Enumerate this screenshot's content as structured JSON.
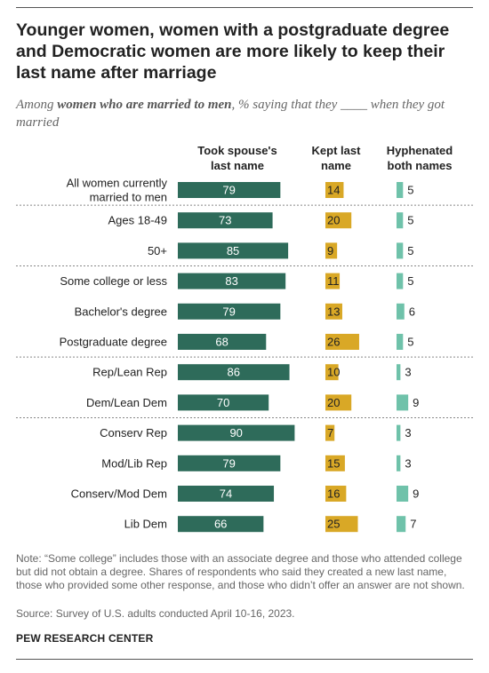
{
  "title": "Younger women, women with a postgraduate degree and Democratic women are more likely to keep their last name after marriage",
  "subtitle": {
    "pre": "Among ",
    "bold": "women who are married to men",
    "post": ", % saying that they ____ when they got married"
  },
  "note": "Note: “Some college” includes those with an associate degree and those who attended college but did not obtain a degree. Shares of respondents who said they created a new last name, those who provided some other response, and those who didn’t offer an answer are not shown.",
  "source": "Source: Survey of U.S. adults conducted April 10-16, 2023.",
  "brand": "PEW RESEARCH CENTER",
  "colors": {
    "took": "#2e6b5a",
    "kept": "#d9a826",
    "hyphenated": "#6fc2aa"
  },
  "chart_data": {
    "type": "bar",
    "title": "Younger women, women with a postgraduate degree and Democratic women are more likely to keep their last name after marriage",
    "categories": [
      "All women currently married to men",
      "Ages 18-49",
      "50+",
      "Some college or less",
      "Bachelor's degree",
      "Postgraduate degree",
      "Rep/Lean Rep",
      "Dem/Lean Dem",
      "Conserv Rep",
      "Mod/Lib Rep",
      "Conserv/Mod Dem",
      "Lib Dem"
    ],
    "category_lines": [
      [
        "All women currently",
        "married to men"
      ],
      [
        "Ages 18-49"
      ],
      [
        "50+"
      ],
      [
        "Some college or less"
      ],
      [
        "Bachelor's degree"
      ],
      [
        "Postgraduate degree"
      ],
      [
        "Rep/Lean Rep"
      ],
      [
        "Dem/Lean Dem"
      ],
      [
        "Conserv Rep"
      ],
      [
        "Mod/Lib Rep"
      ],
      [
        "Conserv/Mod Dem"
      ],
      [
        "Lib Dem"
      ]
    ],
    "groups_after": [
      0,
      2,
      5,
      7
    ],
    "series": [
      {
        "name": "Took spouse's last name",
        "name_lines": [
          "Took spouse's",
          "last name"
        ],
        "values": [
          79,
          73,
          85,
          83,
          79,
          68,
          86,
          70,
          90,
          79,
          74,
          66
        ]
      },
      {
        "name": "Kept last name",
        "name_lines": [
          "Kept last",
          "name"
        ],
        "values": [
          14,
          20,
          9,
          11,
          13,
          26,
          10,
          20,
          7,
          15,
          16,
          25
        ]
      },
      {
        "name": "Hyphenated both names",
        "name_lines": [
          "Hyphenated",
          "both names"
        ],
        "values": [
          5,
          5,
          5,
          5,
          6,
          5,
          3,
          9,
          3,
          3,
          9,
          7
        ]
      }
    ],
    "xlabel": "",
    "ylabel": "",
    "grid": false
  }
}
